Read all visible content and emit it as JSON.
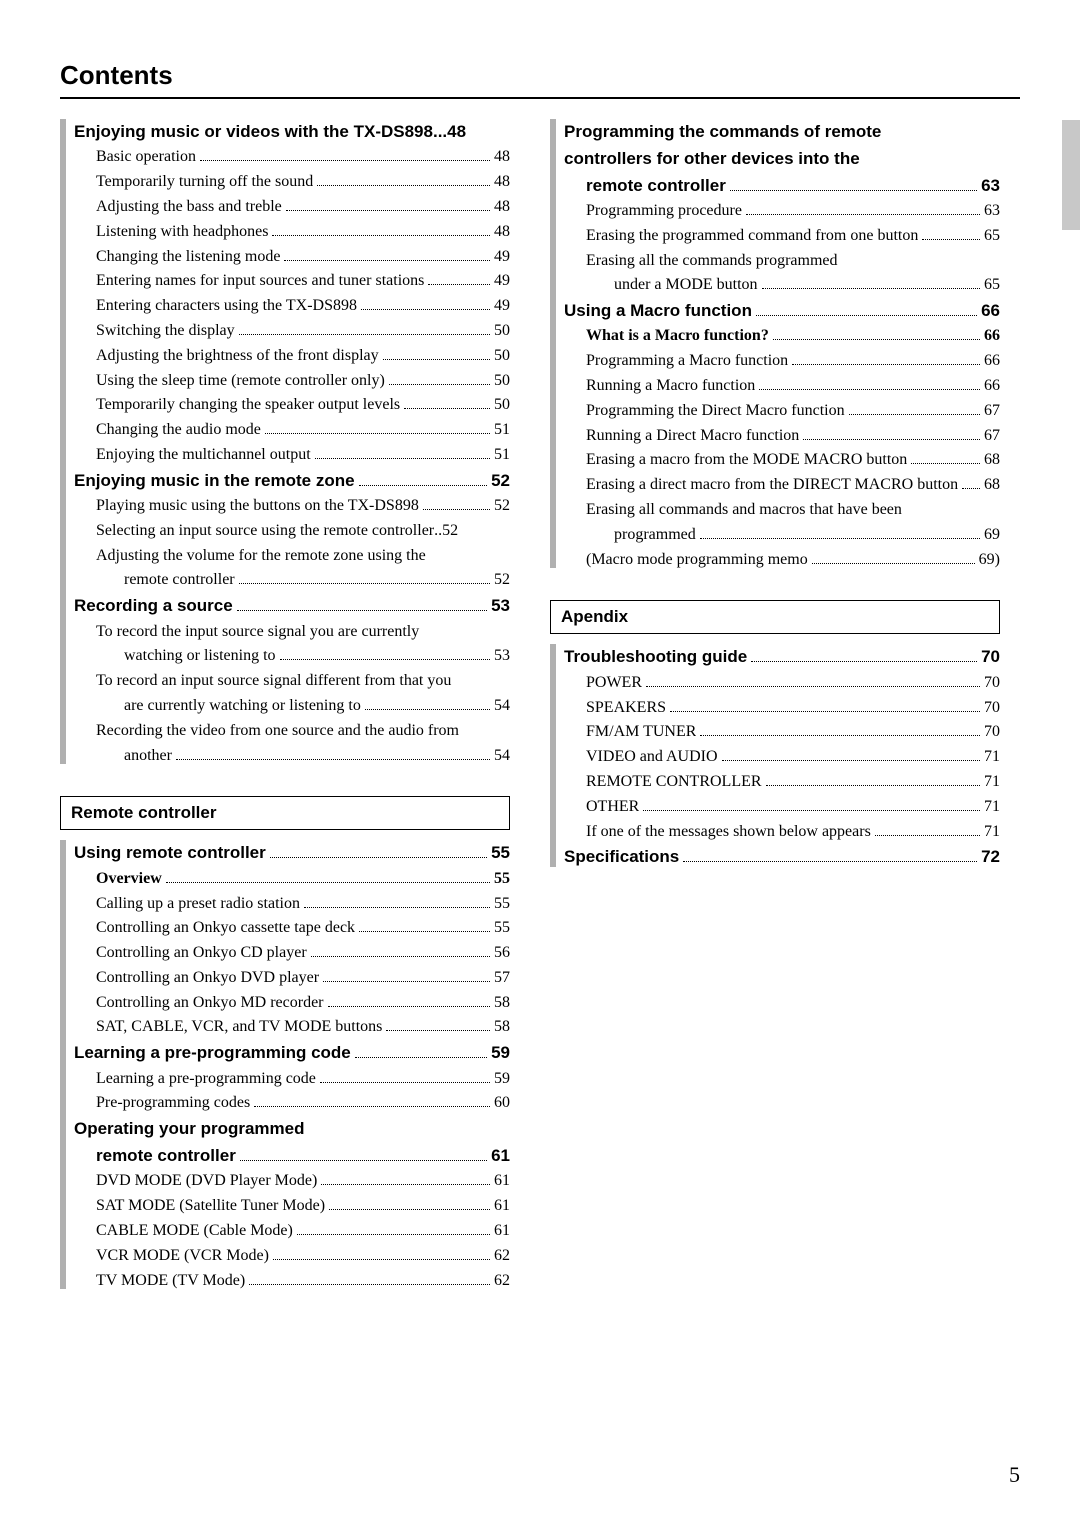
{
  "page": {
    "title": "Contents",
    "number": "5"
  },
  "left": {
    "blocks": [
      {
        "entries": [
          {
            "level": 0,
            "style": "heading",
            "text": "Enjoying music or videos with the TX-DS898",
            "sep": "...",
            "page": "48"
          },
          {
            "level": 1,
            "text": "Basic operation",
            "page": "48"
          },
          {
            "level": 1,
            "text": "Temporarily turning off the sound",
            "page": "48"
          },
          {
            "level": 1,
            "text": "Adjusting the bass and treble",
            "page": "48"
          },
          {
            "level": 1,
            "text": "Listening with headphones",
            "page": "48"
          },
          {
            "level": 1,
            "text": "Changing the listening mode",
            "page": "49"
          },
          {
            "level": 1,
            "text": "Entering names for input sources and tuner stations",
            "page": "49"
          },
          {
            "level": 1,
            "text": "Entering characters using the TX-DS898",
            "page": "49"
          },
          {
            "level": 1,
            "text": "Switching the display",
            "page": "50"
          },
          {
            "level": 1,
            "text": "Adjusting the brightness of the front display",
            "page": "50"
          },
          {
            "level": 1,
            "text": "Using the sleep time (remote controller only)",
            "page": "50"
          },
          {
            "level": 1,
            "text": "Temporarily changing the speaker output levels",
            "page": "50"
          },
          {
            "level": 1,
            "text": "Changing the audio mode",
            "page": "51"
          },
          {
            "level": 1,
            "text": "Enjoying the multichannel output",
            "page": "51"
          },
          {
            "level": 0,
            "style": "heading",
            "text": "Enjoying music in the remote zone",
            "page": "52"
          },
          {
            "level": 1,
            "text": "Playing music using the buttons on the TX-DS898",
            "page": "52"
          },
          {
            "level": 1,
            "text": "Selecting an input source using the remote controller",
            "sep": "..",
            "page": "52"
          },
          {
            "level": 1,
            "cont": true,
            "text": "Adjusting the volume for the remote zone using the",
            "tail_level": 2,
            "tail": "remote controller",
            "page": "52"
          },
          {
            "level": 0,
            "style": "heading",
            "text": "Recording a source",
            "page": "53"
          },
          {
            "level": 1,
            "cont": true,
            "text": "To record the input source signal you are currently",
            "tail_level": 2,
            "tail": "watching or listening to",
            "page": "53"
          },
          {
            "level": 1,
            "cont": true,
            "text": "To record an input source signal different from that you",
            "tail_level": 2,
            "tail": "are currently watching or listening to",
            "page": "54"
          },
          {
            "level": 1,
            "cont": true,
            "text": "Recording the video from one source and the audio from",
            "tail_level": 2,
            "tail": "another",
            "page": "54"
          }
        ]
      },
      {
        "box": "Remote controller",
        "entries": [
          {
            "level": 0,
            "style": "heading",
            "text": "Using remote controller",
            "page": "55"
          },
          {
            "level": 1,
            "style": "subbold",
            "text": "Overview",
            "page": "55"
          },
          {
            "level": 1,
            "text": "Calling up a preset radio station",
            "page": "55"
          },
          {
            "level": 1,
            "text": "Controlling an Onkyo cassette tape deck",
            "page": "55"
          },
          {
            "level": 1,
            "text": "Controlling an Onkyo CD player",
            "page": "56"
          },
          {
            "level": 1,
            "text": "Controlling an Onkyo DVD player",
            "page": "57"
          },
          {
            "level": 1,
            "text": "Controlling an Onkyo MD recorder",
            "page": "58"
          },
          {
            "level": 1,
            "text": "SAT, CABLE, VCR, and TV MODE buttons",
            "page": "58"
          },
          {
            "level": 0,
            "style": "heading",
            "text": "Learning a pre-programming code",
            "page": "59"
          },
          {
            "level": 1,
            "text": "Learning a pre-programming code",
            "page": "59"
          },
          {
            "level": 1,
            "text": "Pre-programming codes",
            "page": "60"
          },
          {
            "level": 0,
            "style": "heading",
            "head_cont": true,
            "text": "Operating your programmed",
            "tail": "remote controller",
            "page": "61"
          },
          {
            "level": 1,
            "text": "DVD MODE (DVD Player Mode)",
            "page": "61"
          },
          {
            "level": 1,
            "text": "SAT MODE (Satellite Tuner Mode)",
            "page": "61"
          },
          {
            "level": 1,
            "text": "CABLE MODE (Cable Mode)",
            "page": "61"
          },
          {
            "level": 1,
            "text": "VCR MODE (VCR Mode)",
            "page": "62"
          },
          {
            "level": 1,
            "text": "TV MODE (TV Mode)",
            "page": "62"
          }
        ]
      }
    ]
  },
  "right": {
    "blocks": [
      {
        "entries": [
          {
            "level": 0,
            "style": "heading",
            "head_cont": true,
            "text": "Programming the commands of remote",
            "text2": "controllers for other devices into the",
            "tail": "remote controller",
            "page": "63"
          },
          {
            "level": 1,
            "text": "Programming procedure",
            "page": "63"
          },
          {
            "level": 1,
            "text": "Erasing the programmed command from one button",
            "page": "65"
          },
          {
            "level": 1,
            "cont": true,
            "text": "Erasing all the commands programmed",
            "tail_level": 2,
            "tail": "under a MODE button",
            "page": "65"
          },
          {
            "level": 0,
            "style": "heading",
            "text": "Using a Macro function",
            "page": "66"
          },
          {
            "level": 1,
            "style": "subbold",
            "text": "What is a Macro function?",
            "page": "66"
          },
          {
            "level": 1,
            "text": "Programming a Macro function",
            "page": "66"
          },
          {
            "level": 1,
            "text": "Running a Macro function",
            "page": "66"
          },
          {
            "level": 1,
            "text": "Programming the Direct Macro function",
            "page": "67"
          },
          {
            "level": 1,
            "text": "Running a Direct Macro function",
            "page": "67"
          },
          {
            "level": 1,
            "text": "Erasing a macro from the MODE MACRO button",
            "page": "68"
          },
          {
            "level": 1,
            "text": "Erasing a direct macro from the DIRECT MACRO button",
            "page": "68"
          },
          {
            "level": 1,
            "cont": true,
            "text": "Erasing all commands and macros that have been",
            "tail_level": 2,
            "tail": "programmed",
            "page": "69"
          },
          {
            "level": 1,
            "paren": true,
            "text": "(Macro mode programming memo",
            "page": "69)"
          }
        ]
      },
      {
        "box": "Apendix",
        "entries": [
          {
            "level": 0,
            "style": "heading",
            "text": "Troubleshooting guide",
            "page": "70"
          },
          {
            "level": 1,
            "text": "POWER",
            "page": "70"
          },
          {
            "level": 1,
            "text": "SPEAKERS",
            "page": "70"
          },
          {
            "level": 1,
            "text": "FM/AM TUNER",
            "page": "70"
          },
          {
            "level": 1,
            "text": "VIDEO and AUDIO",
            "page": "71"
          },
          {
            "level": 1,
            "text": "REMOTE CONTROLLER",
            "page": "71"
          },
          {
            "level": 1,
            "text": "OTHER",
            "page": "71"
          },
          {
            "level": 1,
            "text": "If one of the messages shown below appears",
            "page": "71"
          },
          {
            "level": 0,
            "style": "heading",
            "text": "Specifications",
            "page": "72"
          }
        ]
      }
    ]
  }
}
